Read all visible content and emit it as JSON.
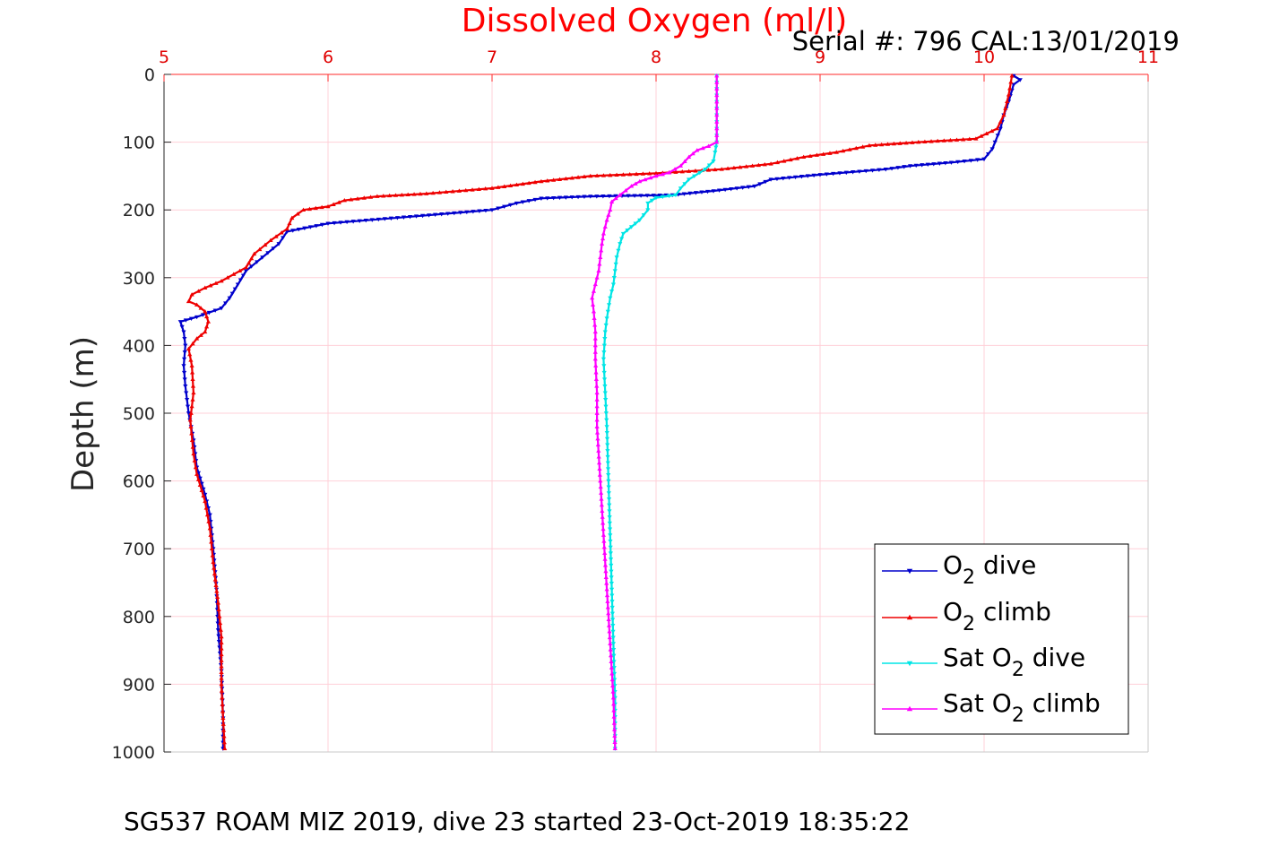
{
  "chart_data": {
    "type": "line",
    "title": "Dissolved Oxygen (ml/l)",
    "subtitle": "Serial #: 796  CAL:13/01/2019",
    "xlabel": "Dissolved Oxygen (ml/l)",
    "ylabel": "Depth (m)",
    "caption": "SG537 ROAM MIZ 2019, dive 23 started 23-Oct-2019 18:35:22",
    "xlim": [
      5,
      11
    ],
    "ylim": [
      0,
      1000
    ],
    "y_reversed": true,
    "x_axis_position": "top",
    "grid": true,
    "xticks": [
      5,
      6,
      7,
      8,
      9,
      10,
      11
    ],
    "yticks": [
      0,
      100,
      200,
      300,
      400,
      500,
      600,
      700,
      800,
      900,
      1000
    ],
    "legend_position": "bottom-right",
    "series": [
      {
        "name": "O2 dive",
        "label_parts": [
          "O",
          "2",
          " dive"
        ],
        "color": "#0000cc",
        "marker": "triangle-down",
        "points": [
          [
            10.18,
            2
          ],
          [
            10.22,
            8
          ],
          [
            10.18,
            15
          ],
          [
            10.15,
            40
          ],
          [
            10.12,
            60
          ],
          [
            10.1,
            80
          ],
          [
            10.05,
            110
          ],
          [
            10.0,
            125
          ],
          [
            9.8,
            130
          ],
          [
            9.55,
            135
          ],
          [
            9.4,
            140
          ],
          [
            9.0,
            148
          ],
          [
            8.7,
            155
          ],
          [
            8.6,
            165
          ],
          [
            8.35,
            172
          ],
          [
            8.1,
            178
          ],
          [
            7.6,
            180
          ],
          [
            7.3,
            183
          ],
          [
            7.15,
            190
          ],
          [
            7.0,
            200
          ],
          [
            6.5,
            210
          ],
          [
            6.0,
            220
          ],
          [
            5.75,
            232
          ],
          [
            5.7,
            250
          ],
          [
            5.6,
            270
          ],
          [
            5.5,
            290
          ],
          [
            5.45,
            310
          ],
          [
            5.4,
            330
          ],
          [
            5.35,
            345
          ],
          [
            5.2,
            358
          ],
          [
            5.1,
            365
          ],
          [
            5.12,
            380
          ],
          [
            5.13,
            400
          ],
          [
            5.12,
            430
          ],
          [
            5.13,
            460
          ],
          [
            5.15,
            500
          ],
          [
            5.18,
            540
          ],
          [
            5.2,
            580
          ],
          [
            5.25,
            620
          ],
          [
            5.28,
            650
          ],
          [
            5.3,
            700
          ],
          [
            5.32,
            760
          ],
          [
            5.33,
            820
          ],
          [
            5.35,
            880
          ],
          [
            5.36,
            950
          ],
          [
            5.36,
            995
          ]
        ]
      },
      {
        "name": "O2 climb",
        "label_parts": [
          "O",
          "2",
          " climb"
        ],
        "color": "#ee0000",
        "marker": "triangle-up",
        "points": [
          [
            10.17,
            2
          ],
          [
            10.15,
            30
          ],
          [
            10.12,
            60
          ],
          [
            10.08,
            80
          ],
          [
            9.95,
            95
          ],
          [
            9.6,
            100
          ],
          [
            9.3,
            105
          ],
          [
            9.1,
            115
          ],
          [
            8.9,
            122
          ],
          [
            8.7,
            132
          ],
          [
            8.4,
            140
          ],
          [
            8.0,
            146
          ],
          [
            7.6,
            150
          ],
          [
            7.3,
            158
          ],
          [
            7.0,
            168
          ],
          [
            6.6,
            176
          ],
          [
            6.3,
            180
          ],
          [
            6.1,
            186
          ],
          [
            6.0,
            195
          ],
          [
            5.85,
            200
          ],
          [
            5.78,
            212
          ],
          [
            5.75,
            228
          ],
          [
            5.65,
            245
          ],
          [
            5.55,
            265
          ],
          [
            5.5,
            285
          ],
          [
            5.35,
            305
          ],
          [
            5.25,
            315
          ],
          [
            5.17,
            325
          ],
          [
            5.15,
            335
          ],
          [
            5.2,
            340
          ],
          [
            5.25,
            350
          ],
          [
            5.27,
            365
          ],
          [
            5.25,
            380
          ],
          [
            5.2,
            390
          ],
          [
            5.15,
            405
          ],
          [
            5.17,
            430
          ],
          [
            5.18,
            470
          ],
          [
            5.16,
            510
          ],
          [
            5.18,
            560
          ],
          [
            5.2,
            590
          ],
          [
            5.25,
            630
          ],
          [
            5.28,
            670
          ],
          [
            5.3,
            720
          ],
          [
            5.33,
            780
          ],
          [
            5.35,
            830
          ],
          [
            5.35,
            900
          ],
          [
            5.36,
            950
          ],
          [
            5.37,
            995
          ]
        ]
      },
      {
        "name": "Sat O2 dive",
        "label_parts": [
          "Sat O",
          "2",
          " dive"
        ],
        "color": "#00e5e5",
        "marker": "triangle-down",
        "points": [
          [
            8.37,
            2
          ],
          [
            8.37,
            50
          ],
          [
            8.37,
            100
          ],
          [
            8.36,
            115
          ],
          [
            8.35,
            128
          ],
          [
            8.3,
            140
          ],
          [
            8.2,
            155
          ],
          [
            8.15,
            168
          ],
          [
            8.12,
            178
          ],
          [
            8.0,
            182
          ],
          [
            7.95,
            190
          ],
          [
            7.95,
            200
          ],
          [
            7.9,
            215
          ],
          [
            7.85,
            225
          ],
          [
            7.8,
            235
          ],
          [
            7.78,
            250
          ],
          [
            7.76,
            270
          ],
          [
            7.75,
            290
          ],
          [
            7.74,
            310
          ],
          [
            7.72,
            330
          ],
          [
            7.7,
            360
          ],
          [
            7.69,
            380
          ],
          [
            7.68,
            420
          ],
          [
            7.69,
            470
          ],
          [
            7.7,
            520
          ],
          [
            7.71,
            600
          ],
          [
            7.72,
            680
          ],
          [
            7.73,
            760
          ],
          [
            7.74,
            840
          ],
          [
            7.75,
            920
          ],
          [
            7.75,
            995
          ]
        ]
      },
      {
        "name": "Sat O2 climb",
        "label_parts": [
          "Sat O",
          "2",
          " climb"
        ],
        "color": "#ff00ff",
        "marker": "triangle-up",
        "points": [
          [
            8.37,
            2
          ],
          [
            8.37,
            50
          ],
          [
            8.37,
            100
          ],
          [
            8.32,
            106
          ],
          [
            8.25,
            112
          ],
          [
            8.2,
            122
          ],
          [
            8.15,
            135
          ],
          [
            8.08,
            145
          ],
          [
            8.0,
            150
          ],
          [
            7.9,
            158
          ],
          [
            7.85,
            165
          ],
          [
            7.78,
            178
          ],
          [
            7.73,
            188
          ],
          [
            7.72,
            200
          ],
          [
            7.7,
            215
          ],
          [
            7.68,
            235
          ],
          [
            7.67,
            250
          ],
          [
            7.66,
            270
          ],
          [
            7.65,
            290
          ],
          [
            7.63,
            310
          ],
          [
            7.61,
            330
          ],
          [
            7.62,
            350
          ],
          [
            7.63,
            380
          ],
          [
            7.63,
            420
          ],
          [
            7.64,
            470
          ],
          [
            7.64,
            520
          ],
          [
            7.66,
            600
          ],
          [
            7.68,
            680
          ],
          [
            7.7,
            760
          ],
          [
            7.72,
            840
          ],
          [
            7.74,
            920
          ],
          [
            7.75,
            995
          ]
        ]
      }
    ]
  }
}
